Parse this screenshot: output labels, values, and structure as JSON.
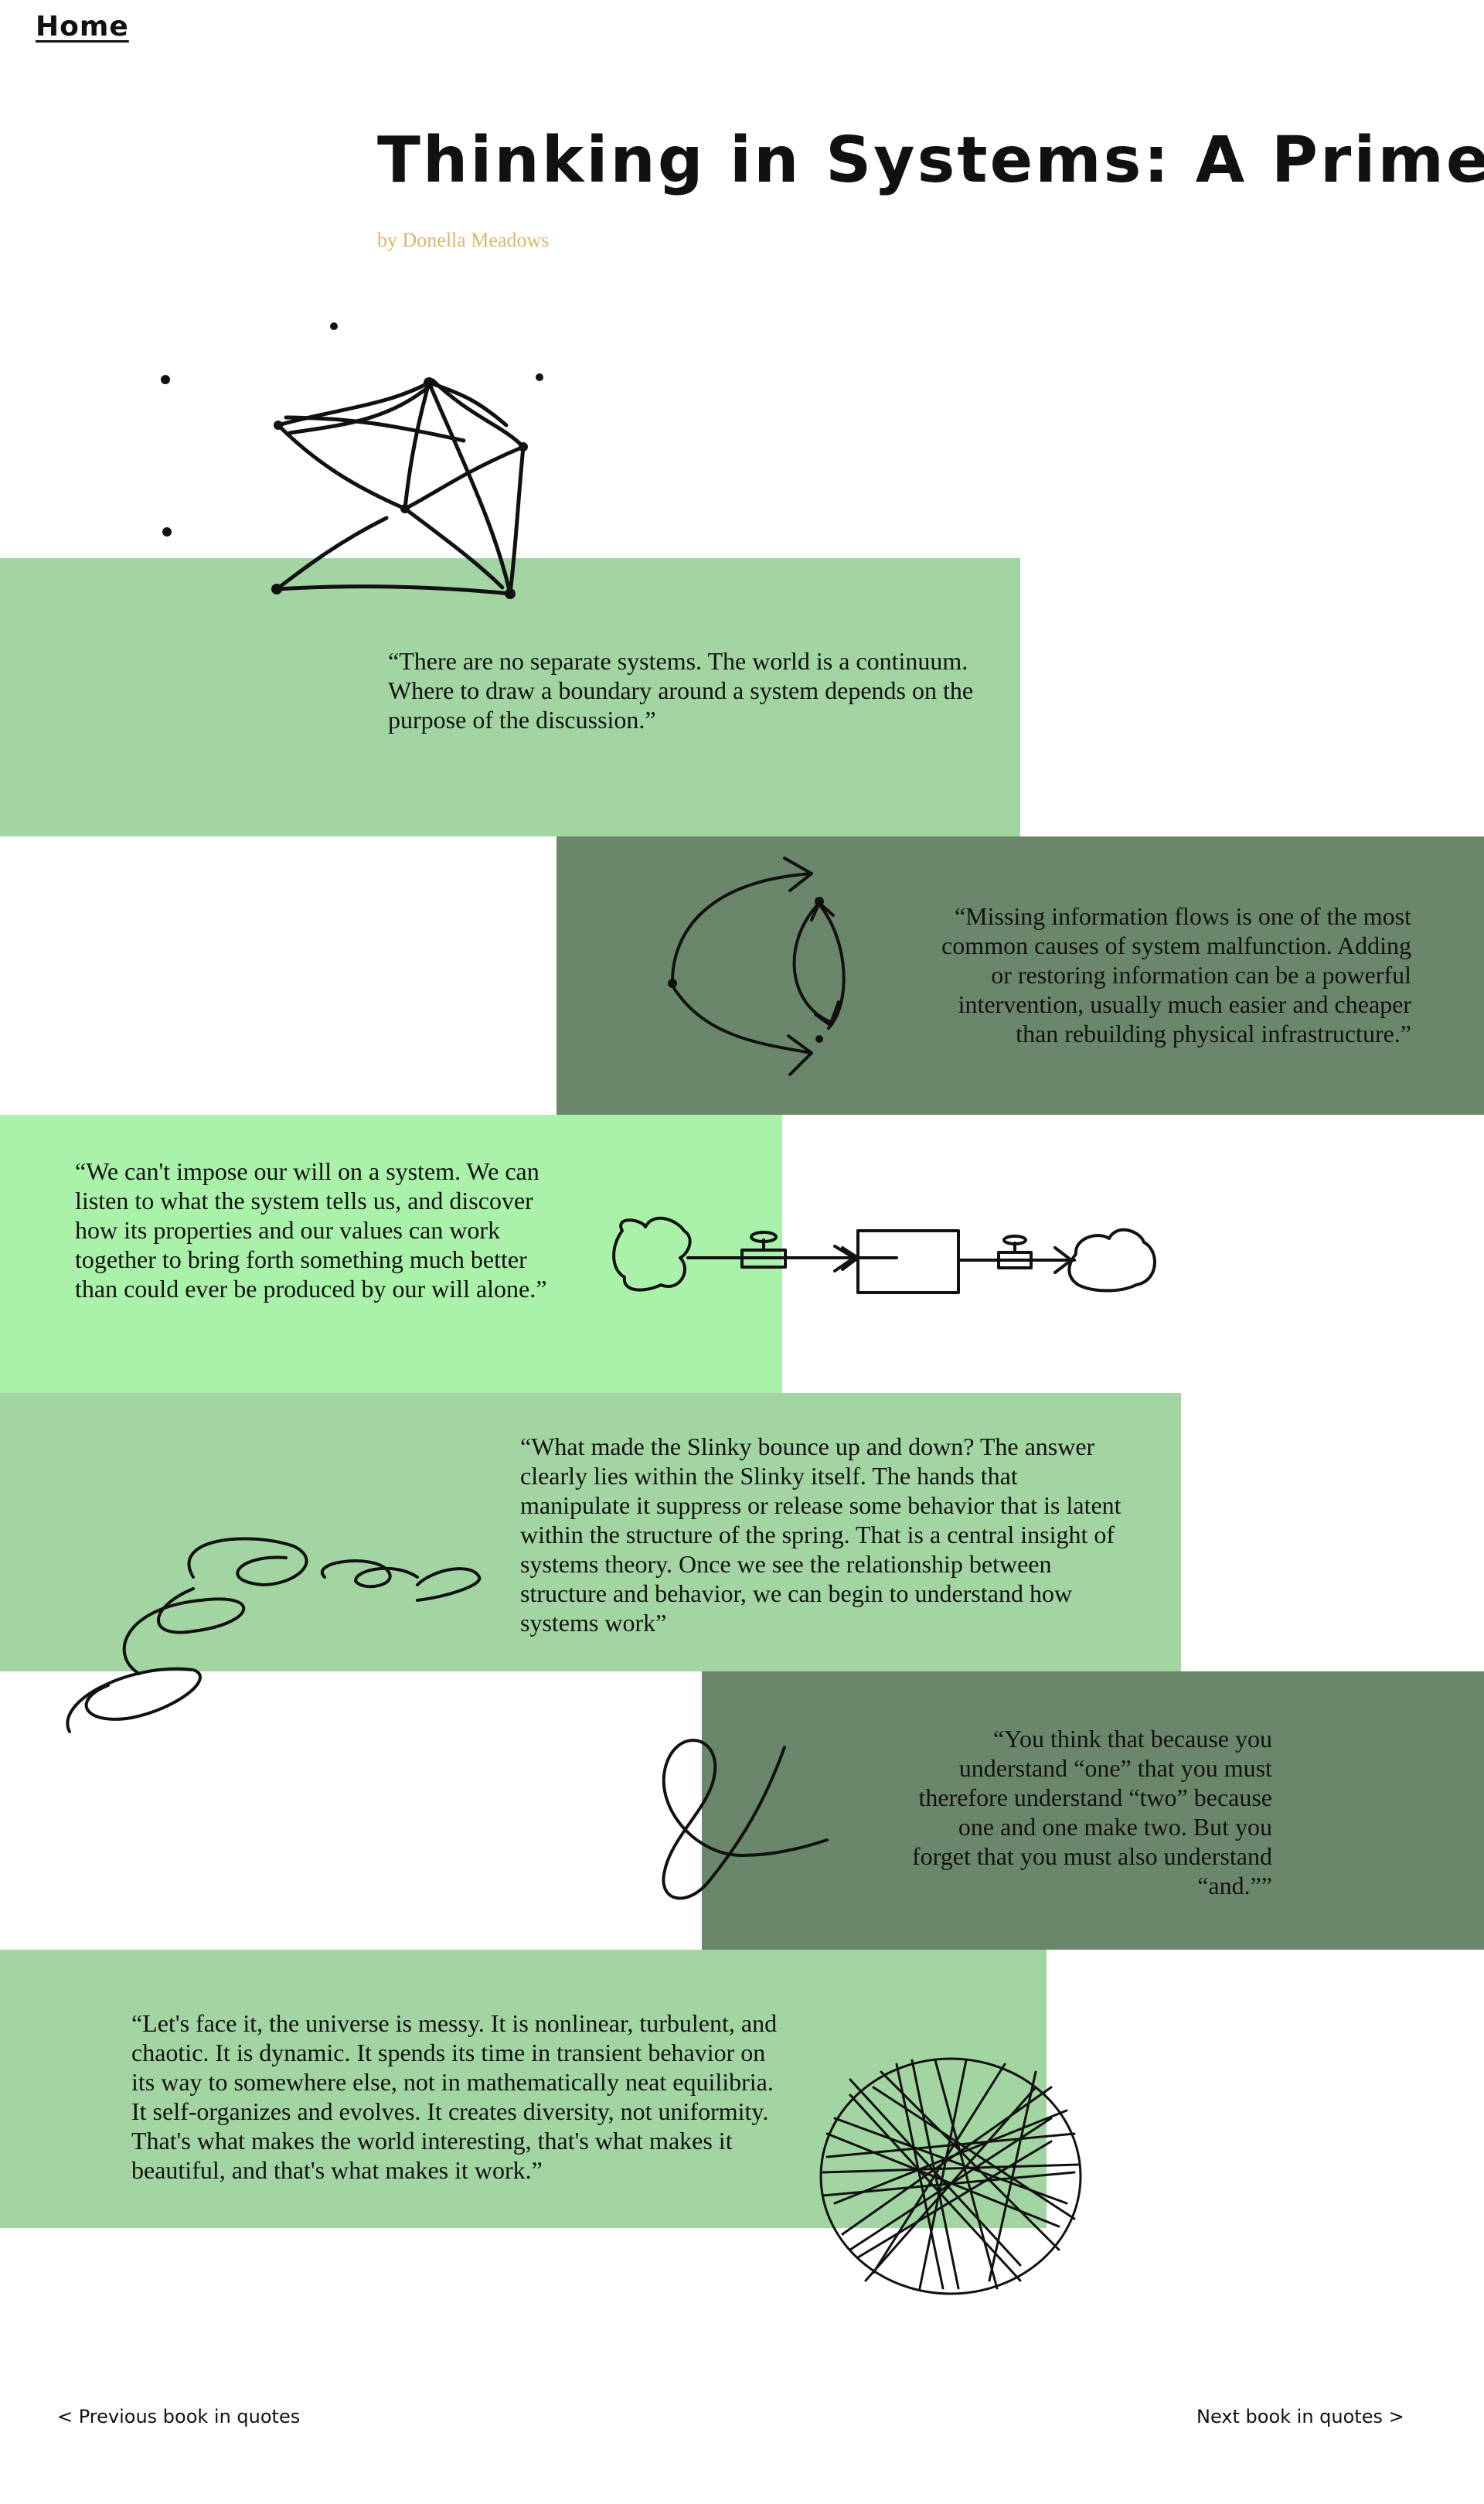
{
  "nav": {
    "home": "Home"
  },
  "book": {
    "title": "Thinking in Systems: A Primer",
    "byline": "by Donella Meadows"
  },
  "colors": {
    "green_light": "#a2d5a2",
    "green_dark": "#6b876b",
    "green_bright": "#aaf2aa",
    "byline": "#e0b36a"
  },
  "quotes": [
    {
      "text": "“There are no separate systems. The world is a continuum. Where to draw a boundary around a system depends on the purpose of the discussion.”",
      "icon": "network-graph-icon"
    },
    {
      "text": "“Missing information flows is one of the most common causes of system malfunction. Adding or restoring information can be a powerful intervention, usually much easier and cheaper than rebuilding physical infrastructure.”",
      "icon": "feedback-loop-icon"
    },
    {
      "text": "“We can't impose our will on a system. We can listen to what the system tells us, and discover how its properties and our values can work together to bring forth something much better than could ever be produced by our will alone.”",
      "icon": "stock-flow-icon"
    },
    {
      "text": "“What made the Slinky bounce up and down? The answer clearly lies within the Slinky itself. The hands that manipulate it suppress or release some behavior that is latent within the structure of the spring. That is a central insight of systems theory. Once we see the relationship between structure and behavior, we can begin to understand how systems work”",
      "icon": "slinky-spring-icon"
    },
    {
      "text": "“You think that because you understand “one” that you must therefore understand “two” because one and one make two. But you forget that you must also understand “and.””",
      "icon": "ampersand-icon"
    },
    {
      "text": "“Let's face it, the universe is messy. It is nonlinear, turbulent, and chaotic. It is dynamic. It spends its time in transient behavior on its way to somewhere else, not in mathematically neat equilibria. It self-organizes and evolves. It creates diversity, not uniformity. That's what makes the world interesting, that's what makes it beautiful, and that's what makes it work.”",
      "icon": "scribble-circle-icon"
    }
  ],
  "pagination": {
    "previous": "< Previous book in quotes",
    "next": "Next book in quotes >"
  }
}
